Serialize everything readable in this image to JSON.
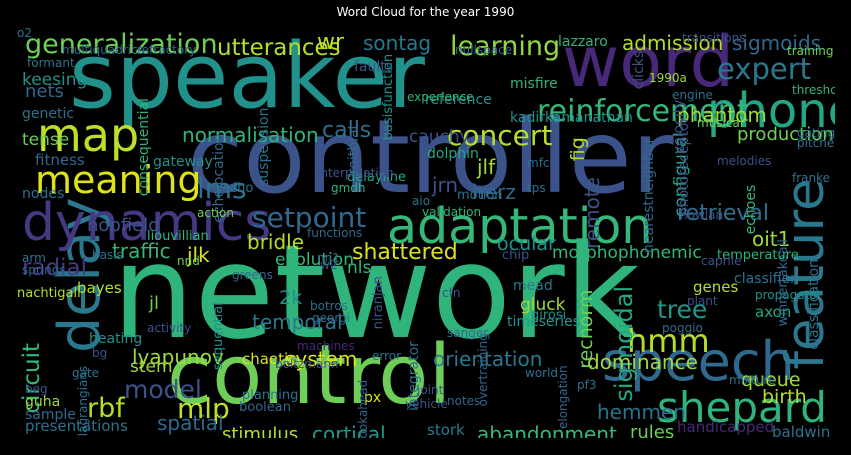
{
  "chart_data": {
    "type": "wordcloud",
    "title": "Word Cloud for the year 1990",
    "words": [
      {
        "text": "network",
        "weight": 100,
        "color": "#2fb47c"
      },
      {
        "text": "controller",
        "weight": 78,
        "color": "#3b528b"
      },
      {
        "text": "speaker",
        "weight": 68,
        "color": "#21918c"
      },
      {
        "text": "control",
        "weight": 62,
        "color": "#6ece58"
      },
      {
        "text": "word",
        "weight": 52,
        "color": "#482878"
      },
      {
        "text": "delay",
        "weight": 42,
        "color": "#2a788e"
      },
      {
        "text": "speech",
        "weight": 40,
        "color": "#31688e"
      },
      {
        "text": "feature",
        "weight": 39,
        "color": "#2a788e"
      },
      {
        "text": "dynamics",
        "weight": 38,
        "color": "#443983"
      },
      {
        "text": "adaptation",
        "weight": 36,
        "color": "#35b779"
      },
      {
        "text": "phone",
        "weight": 35,
        "color": "#22a884"
      },
      {
        "text": "map",
        "weight": 33,
        "color": "#bddf26"
      },
      {
        "text": "shepard",
        "weight": 30,
        "color": "#2fb47c"
      },
      {
        "text": "meaning",
        "weight": 27,
        "color": "#dde318"
      },
      {
        "text": "hmm",
        "weight": 22,
        "color": "#b5de2b"
      },
      {
        "text": "reinforcement",
        "weight": 21,
        "color": "#35b779"
      },
      {
        "text": "expert",
        "weight": 20,
        "color": "#2a788e"
      },
      {
        "text": "concert",
        "weight": 19,
        "color": "#b5de2b"
      },
      {
        "text": "setpoint",
        "weight": 19,
        "color": "#31688e"
      },
      {
        "text": "lms",
        "weight": 19,
        "color": "#2c728e"
      },
      {
        "text": "mlp",
        "weight": 19,
        "color": "#bddf26"
      },
      {
        "text": "generalization",
        "weight": 18,
        "color": "#6ece58"
      },
      {
        "text": "learning",
        "weight": 18,
        "color": "#90d743"
      },
      {
        "text": "rbf",
        "weight": 18,
        "color": "#b5de2b"
      },
      {
        "text": "model",
        "weight": 17,
        "color": "#3b528b"
      },
      {
        "text": "tree",
        "weight": 17,
        "color": "#1f988b"
      },
      {
        "text": "sigmoidal",
        "weight": 16,
        "color": "#22a884"
      },
      {
        "text": "utterances",
        "weight": 15,
        "color": "#b5de2b"
      },
      {
        "text": "radial",
        "weight": 15,
        "color": "#443983"
      },
      {
        "text": "circuit",
        "weight": 15,
        "color": "#35b779"
      },
      {
        "text": "retrieval",
        "weight": 14,
        "color": "#2c728e"
      },
      {
        "text": "shattered",
        "weight": 14,
        "color": "#dde318"
      },
      {
        "text": "admission",
        "weight": 13,
        "color": "#b5de2b"
      },
      {
        "text": "sigmoids",
        "weight": 13,
        "color": "#31688e"
      },
      {
        "text": "phantom",
        "weight": 13,
        "color": "#a0da39"
      },
      {
        "text": "normalisation",
        "weight": 13,
        "color": "#2fb47c"
      },
      {
        "text": "calls",
        "weight": 14,
        "color": "#2c728e"
      },
      {
        "text": "sontag",
        "weight": 13,
        "color": "#2a788e"
      },
      {
        "text": "wr",
        "weight": 14,
        "color": "#bddf26"
      },
      {
        "text": "lyapunov",
        "weight": 13,
        "color": "#a0da39"
      },
      {
        "text": "spatial",
        "weight": 13,
        "color": "#31688e"
      },
      {
        "text": "cortical",
        "weight": 13,
        "color": "#1f988b"
      },
      {
        "text": "abandonment",
        "weight": 13,
        "color": "#35b779"
      },
      {
        "text": "hemmen",
        "weight": 13,
        "color": "#2c728e"
      },
      {
        "text": "dominance",
        "weight": 13,
        "color": "#a0da39"
      },
      {
        "text": "system",
        "weight": 13,
        "color": "#dde318"
      },
      {
        "text": "orientation",
        "weight": 13,
        "color": "#2a788e"
      },
      {
        "text": "temporal",
        "weight": 13,
        "color": "#2a788e"
      },
      {
        "text": "bridle",
        "weight": 13,
        "color": "#b5de2b"
      },
      {
        "text": "jlk",
        "weight": 13,
        "color": "#dde318"
      },
      {
        "text": "herz",
        "weight": 13,
        "color": "#31688e"
      },
      {
        "text": "jlf",
        "weight": 13,
        "color": "#a0da39"
      },
      {
        "text": "jrn",
        "weight": 13,
        "color": "#3b528b"
      },
      {
        "text": "oit1",
        "weight": 13,
        "color": "#a0da39"
      },
      {
        "text": "traffic",
        "weight": 13,
        "color": "#35b779"
      },
      {
        "text": "remote",
        "weight": 13,
        "color": "#3b528b"
      },
      {
        "text": "recnorm",
        "weight": 12,
        "color": "#6ece58"
      },
      {
        "text": "ocular",
        "weight": 12,
        "color": "#21918c"
      },
      {
        "text": "queue",
        "weight": 12,
        "color": "#a0da39"
      },
      {
        "text": "birth",
        "weight": 12,
        "color": "#b5de2b"
      },
      {
        "text": "production",
        "weight": 11,
        "color": "#6ece58"
      },
      {
        "text": "nets",
        "weight": 11,
        "color": "#31688e"
      },
      {
        "text": "hopfield",
        "weight": 11,
        "color": "#3b528b"
      },
      {
        "text": "tense",
        "weight": 10,
        "color": "#6ece58"
      },
      {
        "text": "fig",
        "weight": 12,
        "color": "#b5de2b"
      },
      {
        "text": "stimulus",
        "weight": 11,
        "color": "#b5de2b"
      },
      {
        "text": "rules",
        "weight": 11,
        "color": "#6ece58"
      },
      {
        "text": "configural",
        "weight": 10,
        "color": "#22a884"
      },
      {
        "text": "keesing",
        "weight": 10,
        "color": "#21918c"
      },
      {
        "text": "cauchy",
        "weight": 10,
        "color": "#3b528b"
      },
      {
        "text": "presentations",
        "weight": 9,
        "color": "#2c728e"
      },
      {
        "text": "fitness",
        "weight": 9,
        "color": "#31688e"
      },
      {
        "text": "gluck",
        "weight": 10,
        "color": "#a0da39"
      },
      {
        "text": "evolution",
        "weight": 10,
        "color": "#35b779"
      },
      {
        "text": "nls",
        "weight": 10,
        "color": "#35b779"
      },
      {
        "text": "morphophonemic",
        "weight": 10,
        "color": "#35b779"
      },
      {
        "text": "chaotic",
        "weight": 9,
        "color": "#dde318"
      },
      {
        "text": "stem",
        "weight": 10,
        "color": "#a0da39"
      },
      {
        "text": "jl",
        "weight": 11,
        "color": "#6ece58"
      },
      {
        "text": "2k",
        "weight": 12,
        "color": "#21918c"
      },
      {
        "text": "bayes",
        "weight": 9,
        "color": "#b5de2b"
      },
      {
        "text": "genes",
        "weight": 9,
        "color": "#b5de2b"
      },
      {
        "text": "axon",
        "weight": 9,
        "color": "#22a884"
      },
      {
        "text": "stork",
        "weight": 9,
        "color": "#2a788e"
      },
      {
        "text": "baldwin",
        "weight": 9,
        "color": "#2c728e"
      },
      {
        "text": "handicapped",
        "weight": 9,
        "color": "#482878"
      },
      {
        "text": "reference",
        "weight": 8,
        "color": "#21918c"
      },
      {
        "text": "misfire",
        "weight": 8,
        "color": "#2fb47c"
      },
      {
        "text": "lazzaro",
        "weight": 8,
        "color": "#2fb47c"
      },
      {
        "text": "echoes",
        "weight": 8,
        "color": "#35b779"
      },
      {
        "text": "classification",
        "weight": 8,
        "color": "#2c728e"
      },
      {
        "text": "winnertakeall",
        "weight": 7,
        "color": "#31688e"
      },
      {
        "text": "classifier",
        "weight": 8,
        "color": "#2c728e"
      },
      {
        "text": "temperature",
        "weight": 7,
        "color": "#2fb47c"
      },
      {
        "text": "genetic",
        "weight": 8,
        "color": "#2c728e"
      },
      {
        "text": "nodes",
        "weight": 8,
        "color": "#2c728e"
      },
      {
        "text": "dolphin",
        "weight": 8,
        "color": "#22a884"
      },
      {
        "text": "velocity",
        "weight": 8,
        "color": "#3b528b"
      },
      {
        "text": "nearestneighbor",
        "weight": 8,
        "color": "#31688e"
      },
      {
        "text": "photoreceptor",
        "weight": 8,
        "color": "#3b528b"
      },
      {
        "text": "kadirkamanathan",
        "weight": 8,
        "color": "#21918c"
      },
      {
        "text": "timeseries",
        "weight": 8,
        "color": "#1f988b"
      },
      {
        "text": "niranjan",
        "weight": 7,
        "color": "#3b528b"
      },
      {
        "text": "integrator",
        "weight": 8,
        "color": "#2c728e"
      },
      {
        "text": "consequential",
        "weight": 8,
        "color": "#2fb47c"
      },
      {
        "text": "echolocation",
        "weight": 8,
        "color": "#31688e"
      },
      {
        "text": "suspension",
        "weight": 8,
        "color": "#2c728e"
      },
      {
        "text": "roitblat",
        "weight": 8,
        "color": "#31688e"
      },
      {
        "text": "basisfunction",
        "weight": 7,
        "color": "#21918c"
      },
      {
        "text": "faults",
        "weight": 8,
        "color": "#3b528b"
      },
      {
        "text": "clicks",
        "weight": 8,
        "color": "#3b528b"
      },
      {
        "text": "gateway",
        "weight": 8,
        "color": "#21918c"
      },
      {
        "text": "heating",
        "weight": 8,
        "color": "#21918c"
      },
      {
        "text": "sequential",
        "weight": 7,
        "color": "#21918c"
      },
      {
        "text": "guha",
        "weight": 8,
        "color": "#a0da39"
      },
      {
        "text": "sample",
        "weight": 8,
        "color": "#31688e"
      },
      {
        "text": "px",
        "weight": 8,
        "color": "#dde318"
      },
      {
        "text": "delayline",
        "weight": 7,
        "color": "#22a884"
      },
      {
        "text": "liouvillian",
        "weight": 7,
        "color": "#2fb47c"
      },
      {
        "text": "nachtigall",
        "weight": 7,
        "color": "#b5de2b"
      },
      {
        "text": "planning",
        "weight": 7,
        "color": "#2c728e"
      },
      {
        "text": "boolean",
        "weight": 7,
        "color": "#31688e"
      },
      {
        "text": "mead",
        "weight": 8,
        "color": "#2a788e"
      },
      {
        "text": "girosi",
        "weight": 7,
        "color": "#21918c"
      },
      {
        "text": "propagator",
        "weight": 6,
        "color": "#21918c"
      },
      {
        "text": "mixture",
        "weight": 6,
        "color": "#2c728e"
      },
      {
        "text": "training",
        "weight": 6,
        "color": "#6ece58"
      },
      {
        "text": "threshold",
        "weight": 6,
        "color": "#2fb47c"
      },
      {
        "text": "gating",
        "weight": 6,
        "color": "#2c728e"
      },
      {
        "text": "pitches",
        "weight": 6,
        "color": "#2c728e"
      },
      {
        "text": "melodies",
        "weight": 6,
        "color": "#3b528b"
      },
      {
        "text": "musical",
        "weight": 6,
        "color": "#6ece58"
      },
      {
        "text": "engine",
        "weight": 6,
        "color": "#2c728e"
      },
      {
        "text": "1990a",
        "weight": 6,
        "color": "#a0da39"
      },
      {
        "text": "transitions",
        "weight": 6,
        "color": "#3b528b"
      },
      {
        "text": "multiquadrics",
        "weight": 6,
        "color": "#31688e"
      },
      {
        "text": "refractory",
        "weight": 6,
        "color": "#31688e"
      },
      {
        "text": "formant",
        "weight": 6,
        "color": "#2c728e"
      },
      {
        "text": "experience",
        "weight": 6,
        "color": "#35b779"
      },
      {
        "text": "nullspace",
        "weight": 6,
        "color": "#31688e"
      },
      {
        "text": "action",
        "weight": 6,
        "color": "#6ece58"
      },
      {
        "text": "validation",
        "weight": 6,
        "color": "#2fb47c"
      },
      {
        "text": "motion",
        "weight": 7,
        "color": "#2c728e"
      },
      {
        "text": "echo",
        "weight": 7,
        "color": "#2c728e"
      },
      {
        "text": "nowlan",
        "weight": 6,
        "color": "#3b528b"
      },
      {
        "text": "caprile",
        "weight": 6,
        "color": "#3b528b"
      },
      {
        "text": "interpolation",
        "weight": 6,
        "color": "#3b528b"
      },
      {
        "text": "functions",
        "weight": 6,
        "color": "#31688e"
      },
      {
        "text": "gmdh",
        "weight": 6,
        "color": "#2fb47c"
      },
      {
        "text": "franke",
        "weight": 6,
        "color": "#2c728e"
      },
      {
        "text": "chip",
        "weight": 7,
        "color": "#3b528b"
      },
      {
        "text": "greens",
        "weight": 6,
        "color": "#31688e"
      },
      {
        "text": "botros",
        "weight": 6,
        "color": "#2c728e"
      },
      {
        "text": "georgi",
        "weight": 6,
        "color": "#31688e"
      },
      {
        "text": "sanger",
        "weight": 6,
        "color": "#31688e"
      },
      {
        "text": "cfn",
        "weight": 6,
        "color": "#3b528b"
      },
      {
        "text": "plant",
        "weight": 6,
        "color": "#3b528b"
      },
      {
        "text": "poggio",
        "weight": 6,
        "color": "#31688e"
      },
      {
        "text": "overtraining",
        "weight": 6,
        "color": "#31688e"
      },
      {
        "text": "elongation",
        "weight": 6,
        "color": "#31688e"
      },
      {
        "text": "lagrangians",
        "weight": 6,
        "color": "#2c728e"
      },
      {
        "text": "bg",
        "weight": 6,
        "color": "#3b528b"
      },
      {
        "text": "beg",
        "weight": 6,
        "color": "#3b528b"
      },
      {
        "text": "gate",
        "weight": 6,
        "color": "#2c728e"
      },
      {
        "text": "arm",
        "weight": 6,
        "color": "#2c728e"
      },
      {
        "text": "springs",
        "weight": 6,
        "color": "#31688e"
      },
      {
        "text": "basis",
        "weight": 6,
        "color": "#2c728e"
      },
      {
        "text": "nnd",
        "weight": 6,
        "color": "#6ece58"
      },
      {
        "text": "nn1",
        "weight": 6,
        "color": "#31688e"
      },
      {
        "text": "w2",
        "weight": 6,
        "color": "#3b528b"
      },
      {
        "text": "activity",
        "weight": 6,
        "color": "#3b528b"
      },
      {
        "text": "boltzmann",
        "weight": 6,
        "color": "#3b528b"
      },
      {
        "text": "machines",
        "weight": 6,
        "color": "#482878"
      },
      {
        "text": "error",
        "weight": 6,
        "color": "#2c728e"
      },
      {
        "text": "world",
        "weight": 6,
        "color": "#2c728e"
      },
      {
        "text": "joint",
        "weight": 6,
        "color": "#3b528b"
      },
      {
        "text": "vehicle",
        "weight": 6,
        "color": "#3b528b"
      },
      {
        "text": "notes",
        "weight": 6,
        "color": "#31688e"
      },
      {
        "text": "pf3",
        "weight": 6,
        "color": "#2c728e"
      },
      {
        "text": "lookahead",
        "weight": 6,
        "color": "#31688e"
      },
      {
        "text": "mfc",
        "weight": 6,
        "color": "#2c728e"
      },
      {
        "text": "tps",
        "weight": 6,
        "color": "#2c728e"
      },
      {
        "text": "aio",
        "weight": 6,
        "color": "#2c728e"
      },
      {
        "text": "o2",
        "weight": 6,
        "color": "#2c728e"
      }
    ]
  }
}
